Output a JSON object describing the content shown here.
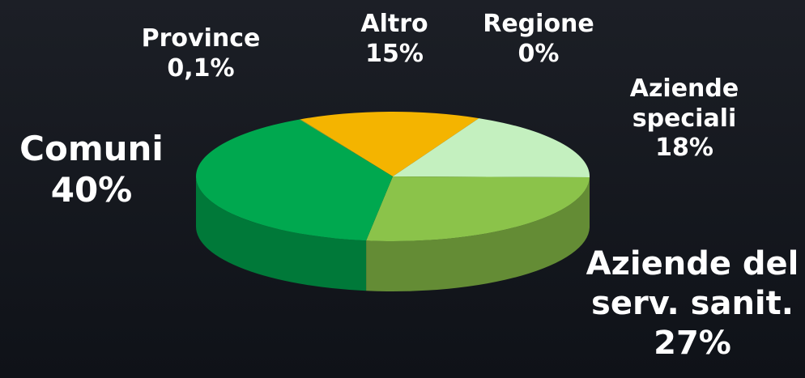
{
  "chart_data": {
    "type": "pie",
    "categories": [
      "Altro",
      "Regione",
      "Aziende speciali",
      "Aziende del serv. sanit.",
      "Comuni",
      "Province"
    ],
    "values": [
      15,
      0,
      18,
      27,
      40,
      0.1
    ],
    "value_labels": [
      "15%",
      "0%",
      "18%",
      "27%",
      "40%",
      "0,1%"
    ],
    "colors": [
      "#f4b400",
      "#9ccc65",
      "#c4f0bf",
      "#8bc34a",
      "#00a84f",
      "#7cb342"
    ]
  }
}
